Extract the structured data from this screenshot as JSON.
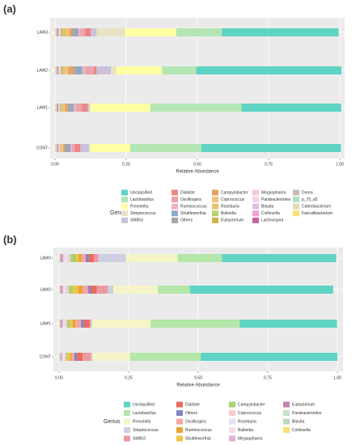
{
  "chart_data": [
    {
      "type": "stacked-barh",
      "label": "(a)",
      "xlabel": "Relative Abundance",
      "legend_title": "Genus",
      "categories": [
        "CONT",
        "LAW1",
        "LAW2",
        "LAW3"
      ],
      "xlim": [
        0,
        1
      ],
      "xticks": [
        {
          "value": 0,
          "label": "0.00"
        },
        {
          "value": 0.25,
          "label": "0.25"
        },
        {
          "value": 0.5,
          "label": "0.50"
        },
        {
          "value": 0.75,
          "label": "0.75"
        },
        {
          "value": 1,
          "label": "1.00"
        }
      ],
      "grid": true,
      "series": [
        {
          "name": "Unclassified",
          "color": "#5fd3c4",
          "values": [
            0.49,
            0.35,
            0.51,
            0.41
          ]
        },
        {
          "name": "Lactobacillus",
          "color": "#b3e6b3",
          "values": [
            0.25,
            0.32,
            0.12,
            0.16
          ]
        },
        {
          "name": "Prevotella",
          "color": "#ffffa3",
          "values": [
            0.14,
            0.21,
            0.16,
            0.18
          ]
        },
        {
          "name": "Streptococcus",
          "color": "#e6e3c3",
          "values": [
            0.005,
            0.005,
            0.02,
            0.1
          ]
        },
        {
          "name": "SM853",
          "color": "#cbc0dc",
          "values": [
            0.03,
            0.005,
            0.05,
            0.02
          ]
        },
        {
          "name": "Dialister",
          "color": "#ee8585",
          "values": [
            0.02,
            0.02,
            0.01,
            0.02
          ]
        },
        {
          "name": "Oscillospira",
          "color": "#e9a3ad",
          "values": [
            0.01,
            0.02,
            0.03,
            0.015
          ]
        },
        {
          "name": "Ruminococcus",
          "color": "#f0b0c0",
          "values": [
            0.005,
            0.01,
            0.01,
            0.01
          ]
        },
        {
          "name": "Shuttleworthia",
          "color": "#8fa9c9",
          "values": [
            0.01,
            0.01,
            0.02,
            0.01
          ]
        },
        {
          "name": "Others",
          "color": "#a6a6a6",
          "values": [
            0.01,
            0.01,
            0.01,
            0.01
          ]
        },
        {
          "name": "Campylobacter",
          "color": "#e6a262",
          "values": [
            0.005,
            0.01,
            0.02,
            0.01
          ]
        },
        {
          "name": "Coprococcus",
          "color": "#f3c382",
          "values": [
            0.005,
            0.005,
            0.01,
            0.01
          ]
        },
        {
          "name": "Roseburia",
          "color": "#e6c46a",
          "values": [
            0.002,
            0.005,
            0.005,
            0.01
          ]
        },
        {
          "name": "Bulleidia",
          "color": "#b9d174",
          "values": [
            0.002,
            0.005,
            0.005,
            0.005
          ]
        },
        {
          "name": "Eubacterium",
          "color": "#d4b04c",
          "values": [
            0.002,
            0.002,
            0.005,
            0.005
          ]
        },
        {
          "name": "Megasphaera",
          "color": "#f8c9d9",
          "values": [
            0.002,
            0.002,
            0.005,
            0.005
          ]
        },
        {
          "name": "Parabacteroides",
          "color": "#f0d3e3",
          "values": [
            0.002,
            0.002,
            0.002,
            0.002
          ]
        },
        {
          "name": "Blautia",
          "color": "#dcc3e3",
          "values": [
            0.002,
            0.002,
            0.002,
            0.002
          ]
        },
        {
          "name": "Collinsella",
          "color": "#f0a3d3",
          "values": [
            0.002,
            0.002,
            0.002,
            0.002
          ]
        },
        {
          "name": "Lachnospira",
          "color": "#c462a3",
          "values": [
            0.002,
            0.002,
            0.002,
            0.002
          ]
        },
        {
          "name": "Dorea",
          "color": "#c9b9b9",
          "values": [
            0.002,
            0.002,
            0.002,
            0.002
          ]
        },
        {
          "name": "p_75_a5",
          "color": "#aae2c3",
          "values": [
            0.002,
            0.002,
            0.002,
            0.002
          ]
        },
        {
          "name": "Catenibacterium",
          "color": "#e2dab3",
          "values": [
            0.002,
            0.002,
            0.002,
            0.002
          ]
        },
        {
          "name": "Faecalibacterium",
          "color": "#f8e272",
          "values": [
            0.002,
            0.002,
            0.002,
            0.002
          ]
        }
      ]
    },
    {
      "type": "stacked-barh",
      "label": "(b)",
      "xlabel": "Relative Abundance",
      "legend_title": "Genus",
      "categories": [
        "CONT",
        "LAW1",
        "LAW2",
        "LAW3"
      ],
      "xlim": [
        0,
        1
      ],
      "xticks": [
        {
          "value": 0,
          "label": "0.00"
        },
        {
          "value": 0.25,
          "label": "0.25"
        },
        {
          "value": 0.5,
          "label": "0.50"
        },
        {
          "value": 0.75,
          "label": "0.75"
        },
        {
          "value": 1,
          "label": "1.00"
        }
      ],
      "grid": true,
      "series": [
        {
          "name": "Unclassified",
          "color": "#5fd3c4",
          "values": [
            0.49,
            0.35,
            0.515,
            0.41
          ]
        },
        {
          "name": "Lactobacillus",
          "color": "#b5e6aa",
          "values": [
            0.255,
            0.32,
            0.115,
            0.16
          ]
        },
        {
          "name": "Prevotella",
          "color": "#f5f5c8",
          "values": [
            0.135,
            0.21,
            0.16,
            0.185
          ]
        },
        {
          "name": "Streptococcus",
          "color": "#cfcfe3",
          "values": [
            0.005,
            0.005,
            0.02,
            0.1
          ]
        },
        {
          "name": "SM853",
          "color": "#ec9aa2",
          "values": [
            0.03,
            0.005,
            0.04,
            0.015
          ]
        },
        {
          "name": "Dialister",
          "color": "#e96a5e",
          "values": [
            0.02,
            0.02,
            0.02,
            0.02
          ]
        },
        {
          "name": "Others",
          "color": "#8585c3",
          "values": [
            0.01,
            0.01,
            0.01,
            0.01
          ]
        },
        {
          "name": "Oscillospira",
          "color": "#f3a7a0",
          "values": [
            0.01,
            0.02,
            0.02,
            0.015
          ]
        },
        {
          "name": "Ruminococcus",
          "color": "#e9a233",
          "values": [
            0.005,
            0.01,
            0.015,
            0.01
          ]
        },
        {
          "name": "Shuttleworthia",
          "color": "#f0c545",
          "values": [
            0.01,
            0.01,
            0.02,
            0.01
          ]
        },
        {
          "name": "Campylobacter",
          "color": "#aad274",
          "values": [
            0.005,
            0.01,
            0.015,
            0.02
          ]
        },
        {
          "name": "Coprococcus",
          "color": "#f8cbcb",
          "values": [
            0.005,
            0.005,
            0.01,
            0.01
          ]
        },
        {
          "name": "Roseburia",
          "color": "#e2e2f2",
          "values": [
            0.004,
            0.005,
            0.005,
            0.01
          ]
        },
        {
          "name": "Bulleidia",
          "color": "#f8dbe9",
          "values": [
            0.004,
            0.005,
            0.005,
            0.005
          ]
        },
        {
          "name": "Megasphaera",
          "color": "#e2b3d3",
          "values": [
            0.004,
            0.004,
            0.005,
            0.005
          ]
        },
        {
          "name": "Eubacterium",
          "color": "#c383b3",
          "values": [
            0.002,
            0.004,
            0.004,
            0.005
          ]
        },
        {
          "name": "Parabacteroides",
          "color": "#c3e2c3",
          "values": [
            0.002,
            0.002,
            0.002,
            0.002
          ]
        },
        {
          "name": "Blautia",
          "color": "#bbdabb",
          "values": [
            0.002,
            0.002,
            0.002,
            0.002
          ]
        },
        {
          "name": "Collinsella",
          "color": "#f8e272",
          "values": [
            0.002,
            0.002,
            0.002,
            0.002
          ]
        }
      ]
    }
  ]
}
